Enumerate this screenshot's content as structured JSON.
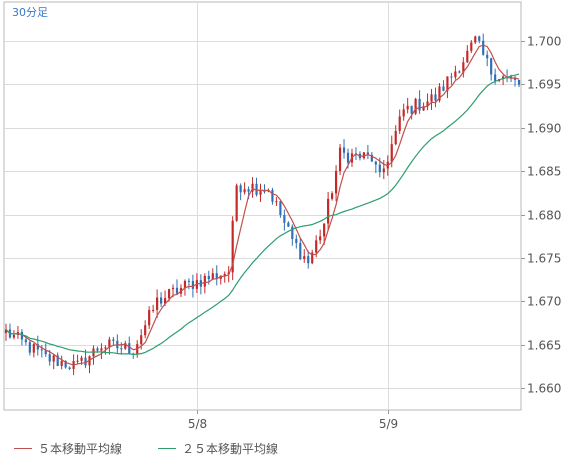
{
  "chart_data": {
    "type": "candlestick",
    "timeframe_label": "30分足",
    "y_tick_labels": [
      "1.700",
      "1.695",
      "1.690",
      "1.685",
      "1.680",
      "1.675",
      "1.670",
      "1.665",
      "1.660"
    ],
    "y_ticks": [
      1.7,
      1.695,
      1.69,
      1.685,
      1.68,
      1.675,
      1.67,
      1.665,
      1.66
    ],
    "ylim": [
      1.6575,
      1.7045
    ],
    "x_tick_labels": [
      "5/8",
      "5/9"
    ],
    "x_tick_index": [
      48,
      96
    ],
    "grid": true,
    "bar_count": 130,
    "waypoints": [
      [
        0,
        1.6665
      ],
      [
        10,
        1.6635
      ],
      [
        18,
        1.6625
      ],
      [
        24,
        1.665
      ],
      [
        32,
        1.6645
      ],
      [
        38,
        1.67
      ],
      [
        46,
        1.672
      ],
      [
        56,
        1.6735
      ],
      [
        58,
        1.6835
      ],
      [
        66,
        1.683
      ],
      [
        72,
        1.677
      ],
      [
        76,
        1.6745
      ],
      [
        80,
        1.679
      ],
      [
        84,
        1.687
      ],
      [
        92,
        1.6865
      ],
      [
        94,
        1.684
      ],
      [
        100,
        1.692
      ],
      [
        108,
        1.6935
      ],
      [
        116,
        1.6985
      ],
      [
        118,
        1.7
      ],
      [
        122,
        1.6965
      ],
      [
        129,
        1.695
      ]
    ],
    "candle_colors": {
      "up": "#c62828",
      "down": "#2f6fb5"
    },
    "series": [
      {
        "name": "５本移動平均線",
        "color": "#c0504d",
        "period": 5
      },
      {
        "name": "２５本移動平均線",
        "color": "#2e9e6e",
        "period": 25
      }
    ]
  },
  "legend": {
    "ma5_label": "５本移動平均線",
    "ma25_label": "２５本移動平均線"
  }
}
